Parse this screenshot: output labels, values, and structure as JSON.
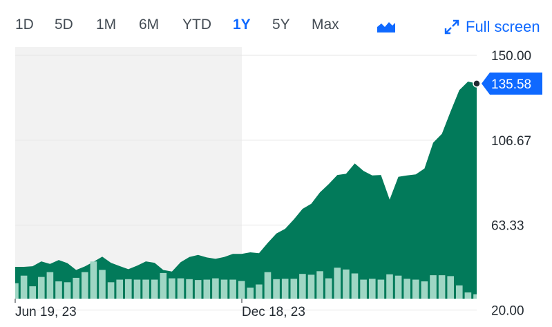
{
  "toolbar": {
    "ranges": [
      "1D",
      "5D",
      "1M",
      "6M",
      "YTD",
      "1Y",
      "5Y",
      "Max"
    ],
    "active_range": "1Y",
    "chart_type_icon": "mountain-chart-icon",
    "fullscreen_icon": "expand-arrows-icon",
    "fullscreen_label": "Full screen"
  },
  "colors": {
    "area_fill": "#027a5a",
    "volume_bar": "#9fd6c4",
    "accent": "#0f69ff",
    "shaded_region": "#f2f2f2"
  },
  "chart_data": {
    "type": "area",
    "price_y_ticks": [
      "150.00",
      "106.67",
      "63.33",
      "20.00"
    ],
    "ylim": [
      0,
      150
    ],
    "x_tick_labels": [
      "Jun 19, 23",
      "Dec 18, 23"
    ],
    "last_price": 135.58,
    "last_price_label": "135.58",
    "shaded_region": "Jun 19, 23 to Dec 18, 23",
    "grid": true,
    "series": [
      {
        "values": [
          42.0,
          42.0,
          42.3,
          44.8,
          43.5,
          45.5,
          43.9,
          40.4,
          42.2,
          44.6,
          47.2,
          44.1,
          42.4,
          40.8,
          42.6,
          44.8,
          44.1,
          40.4,
          39.6,
          44.4,
          47.0,
          48.1,
          46.8,
          46.1,
          47.0,
          48.6,
          48.6,
          49.4,
          49.0,
          54.2,
          59.0,
          61.4,
          66.2,
          71.6,
          74.2,
          80.0,
          84.2,
          88.9,
          89.5,
          94.8,
          91.0,
          88.7,
          88.9,
          76.3,
          88.0,
          88.7,
          89.2,
          92.2,
          105.4,
          109.9,
          121.3,
          132.2,
          136.6,
          135.6
        ]
      },
      {
        "type": "bar",
        "values": [
          0.35,
          0.52,
          0.28,
          0.49,
          0.6,
          0.39,
          0.37,
          0.47,
          0.6,
          0.84,
          0.65,
          0.37,
          0.43,
          0.44,
          0.43,
          0.43,
          0.43,
          0.58,
          0.46,
          0.46,
          0.44,
          0.42,
          0.43,
          0.46,
          0.43,
          0.43,
          0.4,
          0.25,
          0.32,
          0.6,
          0.44,
          0.45,
          0.45,
          0.56,
          0.54,
          0.62,
          0.46,
          0.7,
          0.66,
          0.57,
          0.43,
          0.45,
          0.43,
          0.55,
          0.52,
          0.45,
          0.43,
          0.39,
          0.53,
          0.53,
          0.51,
          0.3,
          0.14,
          0.1
        ]
      }
    ]
  }
}
